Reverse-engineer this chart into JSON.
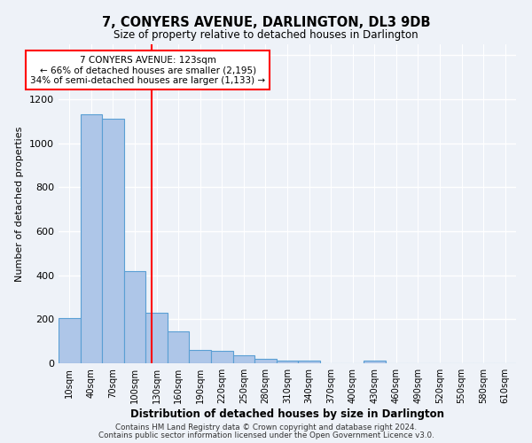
{
  "title": "7, CONYERS AVENUE, DARLINGTON, DL3 9DB",
  "subtitle": "Size of property relative to detached houses in Darlington",
  "xlabel": "Distribution of detached houses by size in Darlington",
  "ylabel": "Number of detached properties",
  "bar_labels": [
    "10sqm",
    "40sqm",
    "70sqm",
    "100sqm",
    "130sqm",
    "160sqm",
    "190sqm",
    "220sqm",
    "250sqm",
    "280sqm",
    "310sqm",
    "340sqm",
    "370sqm",
    "400sqm",
    "430sqm",
    "460sqm",
    "490sqm",
    "520sqm",
    "550sqm",
    "580sqm",
    "610sqm"
  ],
  "bar_values": [
    207,
    1130,
    1110,
    420,
    230,
    145,
    60,
    55,
    35,
    20,
    12,
    12,
    0,
    0,
    13,
    0,
    0,
    0,
    0,
    0,
    0
  ],
  "bar_color": "#aec6e8",
  "bar_edge_color": "#5a9fd4",
  "vline_color": "red",
  "annotation_text": "7 CONYERS AVENUE: 123sqm\n← 66% of detached houses are smaller (2,195)\n34% of semi-detached houses are larger (1,133) →",
  "annotation_box_color": "white",
  "annotation_box_edge_color": "red",
  "ylim": [
    0,
    1450
  ],
  "footer1": "Contains HM Land Registry data © Crown copyright and database right 2024.",
  "footer2": "Contains public sector information licensed under the Open Government Licence v3.0.",
  "bg_color": "#eef2f8",
  "grid_color": "white"
}
